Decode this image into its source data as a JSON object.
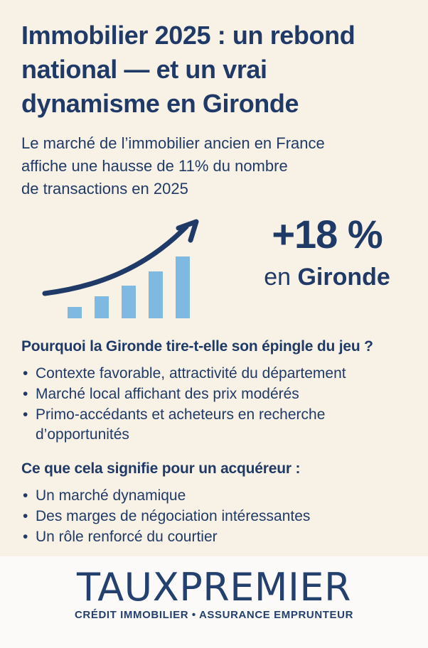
{
  "page": {
    "colors": {
      "background": "#f8f2e6",
      "navy": "#203a67",
      "logo_navy": "#24406e",
      "bar_blue": "#7fb9e2",
      "footer_background": "#fbfaf8"
    }
  },
  "title": {
    "lines": [
      "Immobilier 2025 : un rebond",
      "national — et un vrai",
      "dynamisme en Gironde"
    ]
  },
  "subtitle": {
    "lines": [
      "Le marché de l’immobilier ancien en France",
      "affiche une hausse de 11% du nombre",
      "de transactions en 2025"
    ]
  },
  "hero": {
    "stat": "+18 %",
    "location_prefix": "en ",
    "location": "Gironde"
  },
  "chart_data": {
    "type": "bar",
    "categories": [
      "bar-1",
      "bar-2",
      "bar-3",
      "bar-4",
      "bar-5"
    ],
    "values": [
      16,
      31,
      46,
      66,
      87
    ],
    "title": "",
    "xlabel": "",
    "ylabel": "",
    "ylim": [
      0,
      100
    ],
    "notes": "Decorative growth bar chart, no axes or labels, rising trend arrow overlay",
    "bar_color": "#7fb9e2",
    "arrow_color": "#203a67"
  },
  "sections": [
    {
      "heading": "Pourquoi la Gironde tire-t-elle son épingle du jeu ?",
      "bullets": [
        "Contexte favorable, attractivité du département",
        "Marché local affichant des prix modérés",
        "Primo-accédants et acheteurs en recherche d’opportunités"
      ]
    },
    {
      "heading": "Ce que cela signifie pour un acquéreur :",
      "bullets": [
        "Un marché dynamique",
        "Des marges de négociation intéressantes",
        "Un rôle renforcé du courtier"
      ]
    }
  ],
  "footer": {
    "logo_text": "TAUXPREMIER",
    "tagline": "CRÉDIT IMMOBILIER • ASSURANCE EMPRUNTEUR"
  }
}
